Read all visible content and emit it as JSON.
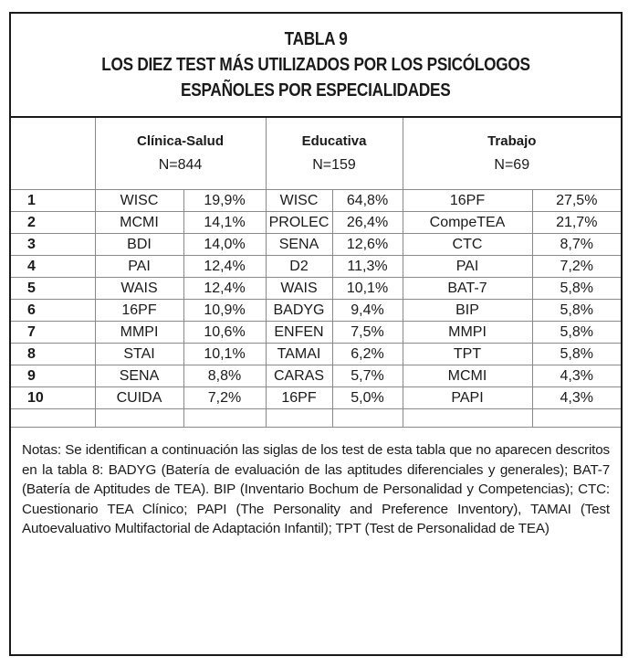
{
  "title": {
    "line1": "TABLA 9",
    "line2": "LOS DIEZ TEST MÁS UTILIZADOS POR LOS PSICÓLOGOS",
    "line3": "ESPAÑOLES POR ESPECIALIDADES"
  },
  "specialties": [
    {
      "name": "Clínica-Salud",
      "n": "N=844"
    },
    {
      "name": "Educativa",
      "n": "N=159"
    },
    {
      "name": "Trabajo",
      "n": "N=69"
    }
  ],
  "rows": [
    {
      "rank": "1",
      "clinica_test": "WISC",
      "clinica_pct": "19,9%",
      "educativa_test": "WISC",
      "educativa_pct": "64,8%",
      "trabajo_test": "16PF",
      "trabajo_pct": "27,5%"
    },
    {
      "rank": "2",
      "clinica_test": "MCMI",
      "clinica_pct": "14,1%",
      "educativa_test": "PROLEC",
      "educativa_pct": "26,4%",
      "trabajo_test": "CompeTEA",
      "trabajo_pct": "21,7%"
    },
    {
      "rank": "3",
      "clinica_test": "BDI",
      "clinica_pct": "14,0%",
      "educativa_test": "SENA",
      "educativa_pct": "12,6%",
      "trabajo_test": "CTC",
      "trabajo_pct": "8,7%"
    },
    {
      "rank": "4",
      "clinica_test": "PAI",
      "clinica_pct": "12,4%",
      "educativa_test": "D2",
      "educativa_pct": "11,3%",
      "trabajo_test": "PAI",
      "trabajo_pct": "7,2%"
    },
    {
      "rank": "5",
      "clinica_test": "WAIS",
      "clinica_pct": "12,4%",
      "educativa_test": "WAIS",
      "educativa_pct": "10,1%",
      "trabajo_test": "BAT-7",
      "trabajo_pct": "5,8%"
    },
    {
      "rank": "6",
      "clinica_test": "16PF",
      "clinica_pct": "10,9%",
      "educativa_test": "BADYG",
      "educativa_pct": "9,4%",
      "trabajo_test": "BIP",
      "trabajo_pct": "5,8%"
    },
    {
      "rank": "7",
      "clinica_test": "MMPI",
      "clinica_pct": "10,6%",
      "educativa_test": "ENFEN",
      "educativa_pct": "7,5%",
      "trabajo_test": "MMPI",
      "trabajo_pct": "5,8%"
    },
    {
      "rank": "8",
      "clinica_test": "STAI",
      "clinica_pct": "10,1%",
      "educativa_test": "TAMAI",
      "educativa_pct": "6,2%",
      "trabajo_test": "TPT",
      "trabajo_pct": "5,8%"
    },
    {
      "rank": "9",
      "clinica_test": "SENA",
      "clinica_pct": "8,8%",
      "educativa_test": "CARAS",
      "educativa_pct": "5,7%",
      "trabajo_test": "MCMI",
      "trabajo_pct": "4,3%"
    },
    {
      "rank": "10",
      "clinica_test": "CUIDA",
      "clinica_pct": "7,2%",
      "educativa_test": "16PF",
      "educativa_pct": "5,0%",
      "trabajo_test": "PAPI",
      "trabajo_pct": "4,3%"
    }
  ],
  "notes": "Notas: Se identifican a continuación las siglas de los test de esta tabla que no aparecen descritos en la tabla 8: BADYG (Batería de evaluación de las aptitudes diferenciales y generales); BAT-7 (Batería de Aptitudes de TEA). BIP (Inventario Bochum de Personalidad y Competencias); CTC: Cuestionario TEA Clínico; PAPI (The Personality and Preference Inventory), TAMAI (Test Autoevaluativo Multifactorial de Adaptación Infantil); TPT (Test de Personalidad de TEA)"
}
